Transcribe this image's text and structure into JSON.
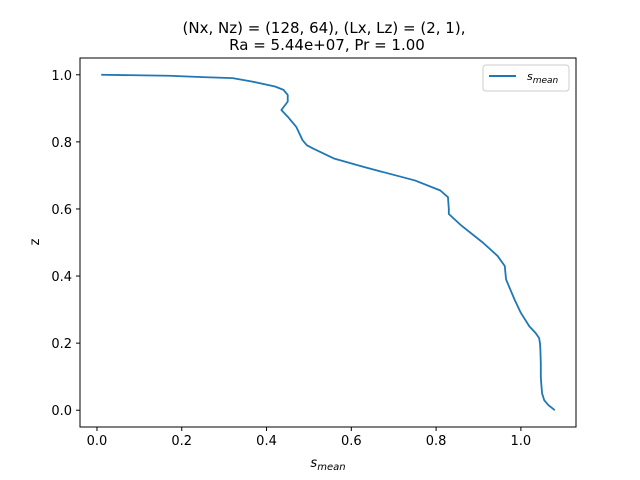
{
  "chart_data": {
    "type": "line",
    "title_line1": "(Nx, Nz) = (128, 64), (Lx, Lz) = (2, 1),",
    "title_line2": "Ra = 5.44e+07, Pr = 1.00",
    "xlabel": "s",
    "xlabel_sub": "mean",
    "ylabel": "z",
    "xlim": [
      -0.04,
      1.13
    ],
    "ylim": [
      -0.05,
      1.05
    ],
    "xticks": [
      0.0,
      0.2,
      0.4,
      0.6,
      0.8,
      1.0
    ],
    "xtick_labels": [
      "0.0",
      "0.2",
      "0.4",
      "0.6",
      "0.8",
      "1.0"
    ],
    "yticks": [
      0.0,
      0.2,
      0.4,
      0.6,
      0.8,
      1.0
    ],
    "ytick_labels": [
      "0.0",
      "0.2",
      "0.4",
      "0.6",
      "0.8",
      "1.0"
    ],
    "grid": false,
    "legend_position": "top-right",
    "series": [
      {
        "name": "s",
        "name_sub": "mean",
        "color": "#1f77b4",
        "x": [
          1.08,
          1.065,
          1.055,
          1.05,
          1.048,
          1.047,
          1.047,
          1.046,
          1.045,
          1.043,
          1.035,
          1.02,
          1.0,
          0.985,
          0.975,
          0.965,
          0.962,
          0.945,
          0.91,
          0.86,
          0.83,
          0.83,
          0.828,
          0.81,
          0.75,
          0.63,
          0.56,
          0.51,
          0.495,
          0.485,
          0.47,
          0.45,
          0.435,
          0.45,
          0.45,
          0.44,
          0.42,
          0.365,
          0.32,
          0.25,
          0.17,
          0.01
        ],
        "y": [
          0.0,
          0.015,
          0.03,
          0.05,
          0.08,
          0.1,
          0.14,
          0.18,
          0.2,
          0.215,
          0.23,
          0.25,
          0.29,
          0.33,
          0.36,
          0.39,
          0.43,
          0.46,
          0.5,
          0.55,
          0.585,
          0.6,
          0.635,
          0.655,
          0.685,
          0.725,
          0.75,
          0.78,
          0.79,
          0.805,
          0.845,
          0.875,
          0.895,
          0.92,
          0.94,
          0.955,
          0.965,
          0.98,
          0.99,
          0.993,
          0.997,
          1.0
        ]
      }
    ]
  }
}
